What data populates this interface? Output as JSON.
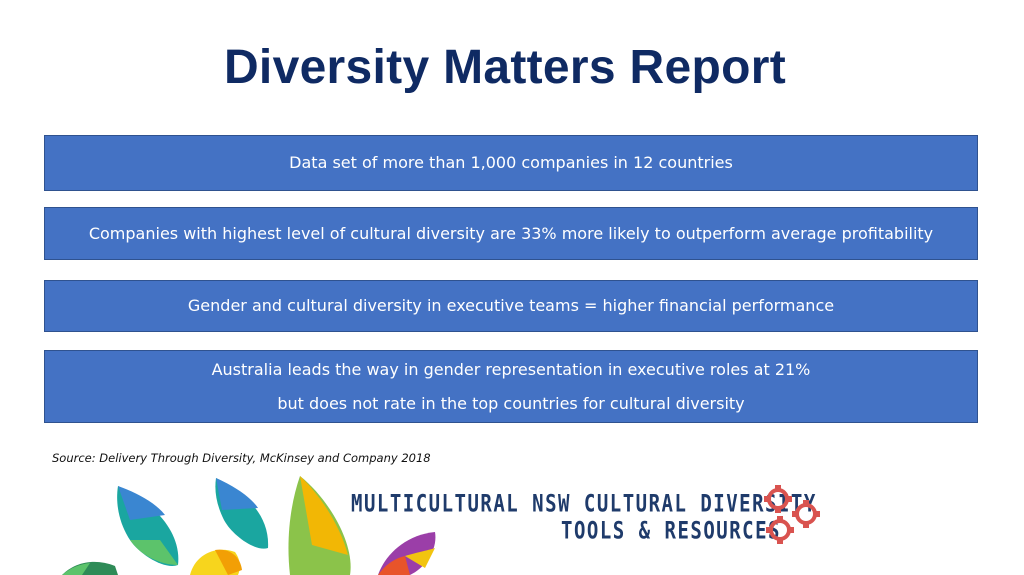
{
  "title": "Diversity Matters Report",
  "points": [
    "Data set of more than 1,000 companies in 12 countries",
    "Companies with highest level of cultural diversity are 33% more likely to outperform average profitability",
    "Gender and cultural diversity in executive teams = higher financial performance",
    "Australia leads the way in gender representation in executive roles at 21%",
    "but does not rate in the top countries for cultural diversity"
  ],
  "source": "Source: Delivery Through Diversity, McKinsey and Company 2018",
  "logo": {
    "line1": "MULTICULTURAL NSW CULTURAL DIVERSITY",
    "line2": "TOOLS & RESOURCES",
    "icon": "gears-icon"
  },
  "colors": {
    "title": "#0f2a63",
    "box": "#4472c4",
    "logo_text": "#1f3b6b",
    "gear": "#d9534f"
  }
}
